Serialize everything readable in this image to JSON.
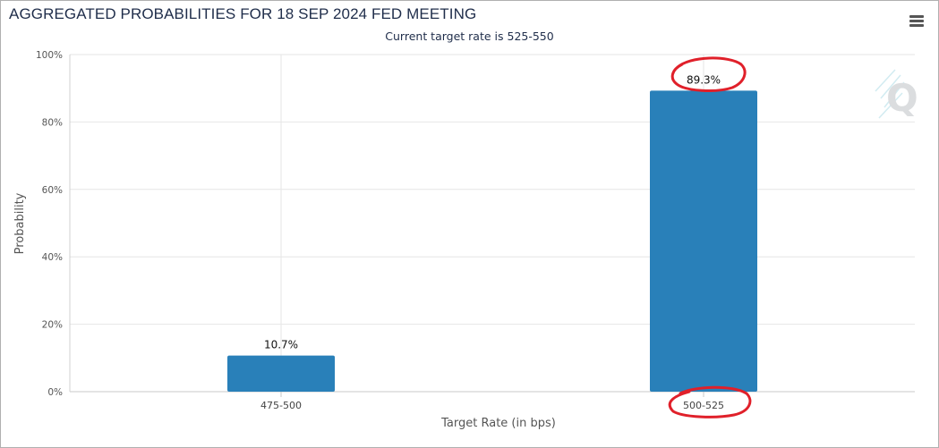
{
  "chart_data": {
    "type": "bar",
    "title": "AGGREGATED PROBABILITIES FOR 18 SEP 2024 FED MEETING",
    "subtitle": "Current target rate is 525-550",
    "categories": [
      "475-500",
      "500-525"
    ],
    "values": [
      10.7,
      89.3
    ],
    "data_labels": [
      "10.7%",
      "89.3%"
    ],
    "xlabel": "Target Rate (in bps)",
    "ylabel": "Probability",
    "ylim": [
      0,
      100
    ],
    "yticks": [
      0,
      20,
      40,
      60,
      80,
      100
    ],
    "ytick_labels": [
      "0%",
      "20%",
      "40%",
      "60%",
      "80%",
      "100%"
    ],
    "grid": true,
    "legend": "none",
    "bar_color": "#2980b9",
    "annotations": [
      "red circle around 89.3% label",
      "red circle around 500-525 label"
    ]
  },
  "colors": {
    "bar": "#2980b9",
    "grid": "#e6e6e6",
    "annotation": "#e0202a",
    "title": "#1f2d4a"
  },
  "icons": {
    "menu": "hamburger-menu-icon",
    "watermark": "q-logo-watermark"
  }
}
